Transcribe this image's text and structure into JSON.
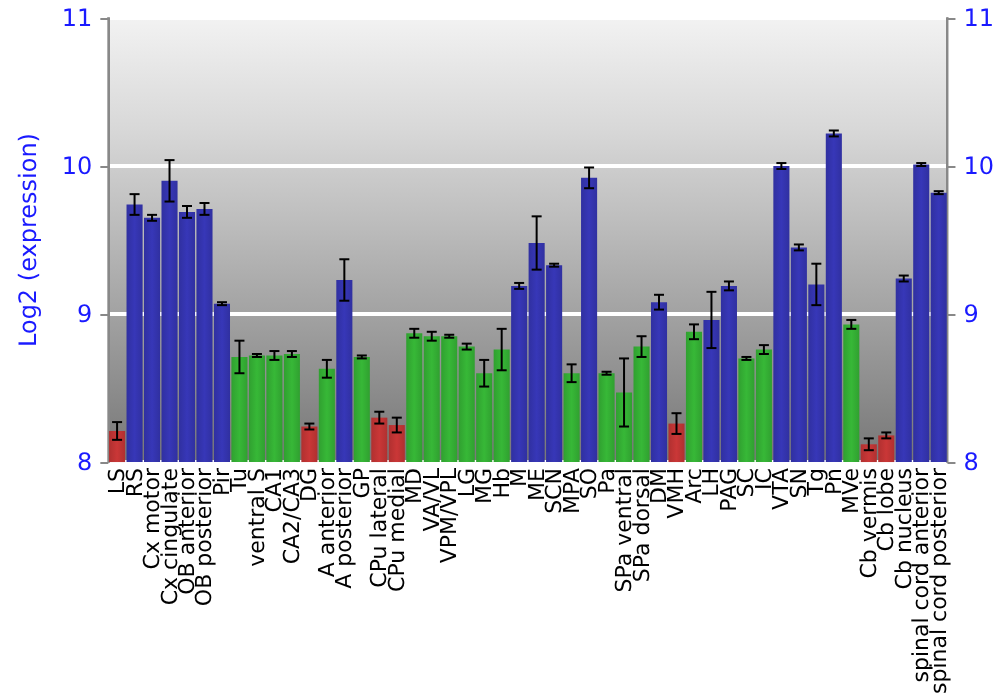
{
  "chart_data": {
    "type": "bar",
    "ylabel": "Log2 (expression)",
    "categories": [
      "LS",
      "RS",
      "Cx motor",
      "Cx cingulate",
      "OB anterior",
      "OB posterior",
      "Pir",
      "Tu",
      "ventral S",
      "CA1",
      "CA2/CA3",
      "DG",
      "A anterior",
      "A posterior",
      "GP",
      "CPu lateral",
      "CPu medial",
      "MD",
      "VA/VL",
      "VPM/VPL",
      "LG",
      "MG",
      "Hb",
      "M",
      "ME",
      "SCN",
      "MPA",
      "SO",
      "Pa",
      "SPa ventral",
      "SPa dorsal",
      "DM",
      "VMH",
      "Arc",
      "LH",
      "PAG",
      "SC",
      "IC",
      "VTA",
      "SN",
      "Tg",
      "Pn",
      "MVe",
      "Cb vermis",
      "Cb lobe",
      "Cb nucleus",
      "spinal cord anterior",
      "spinal cord posterior"
    ],
    "values": [
      8.21,
      9.74,
      9.65,
      9.9,
      9.69,
      9.71,
      9.07,
      8.71,
      8.72,
      8.72,
      8.73,
      8.24,
      8.63,
      9.23,
      8.71,
      8.3,
      8.25,
      8.87,
      8.85,
      8.85,
      8.78,
      8.6,
      8.76,
      9.19,
      9.48,
      9.33,
      8.6,
      9.92,
      8.6,
      8.47,
      8.78,
      9.08,
      8.26,
      8.88,
      8.96,
      9.19,
      8.7,
      8.76,
      10.0,
      9.45,
      9.2,
      10.22,
      8.93,
      8.12,
      8.18,
      9.24,
      10.01,
      9.82
    ],
    "errors": [
      0.06,
      0.07,
      0.02,
      0.14,
      0.04,
      0.04,
      0.01,
      0.11,
      0.01,
      0.03,
      0.02,
      0.02,
      0.06,
      0.14,
      0.01,
      0.04,
      0.05,
      0.03,
      0.03,
      0.01,
      0.02,
      0.09,
      0.14,
      0.02,
      0.18,
      0.01,
      0.06,
      0.07,
      0.01,
      0.23,
      0.07,
      0.05,
      0.07,
      0.05,
      0.19,
      0.03,
      0.01,
      0.03,
      0.02,
      0.02,
      0.14,
      0.02,
      0.03,
      0.04,
      0.02,
      0.02,
      0.01,
      0.01
    ],
    "colors": [
      "#b03030",
      "#3030a0",
      "#3030a0",
      "#3030a0",
      "#3030a0",
      "#3030a0",
      "#3030a0",
      "#30a030",
      "#30a030",
      "#30a030",
      "#30a030",
      "#b03030",
      "#30a030",
      "#3030a0",
      "#30a030",
      "#b03030",
      "#b03030",
      "#30a030",
      "#30a030",
      "#30a030",
      "#30a030",
      "#30a030",
      "#30a030",
      "#3030a0",
      "#3030a0",
      "#3030a0",
      "#30a030",
      "#3030a0",
      "#30a030",
      "#30a030",
      "#30a030",
      "#3030a0",
      "#b03030",
      "#30a030",
      "#3030a0",
      "#3030a0",
      "#30a030",
      "#30a030",
      "#3030a0",
      "#3030a0",
      "#3030a0",
      "#3030a0",
      "#30a030",
      "#b03030",
      "#b03030",
      "#3030a0",
      "#3030a0",
      "#3030a0"
    ],
    "ylim": [
      8,
      11
    ],
    "yticks": [
      8,
      9,
      10,
      11
    ],
    "y2lim": [
      8,
      11
    ],
    "y2ticks": [
      8,
      9,
      10,
      11
    ],
    "grid": "y"
  }
}
